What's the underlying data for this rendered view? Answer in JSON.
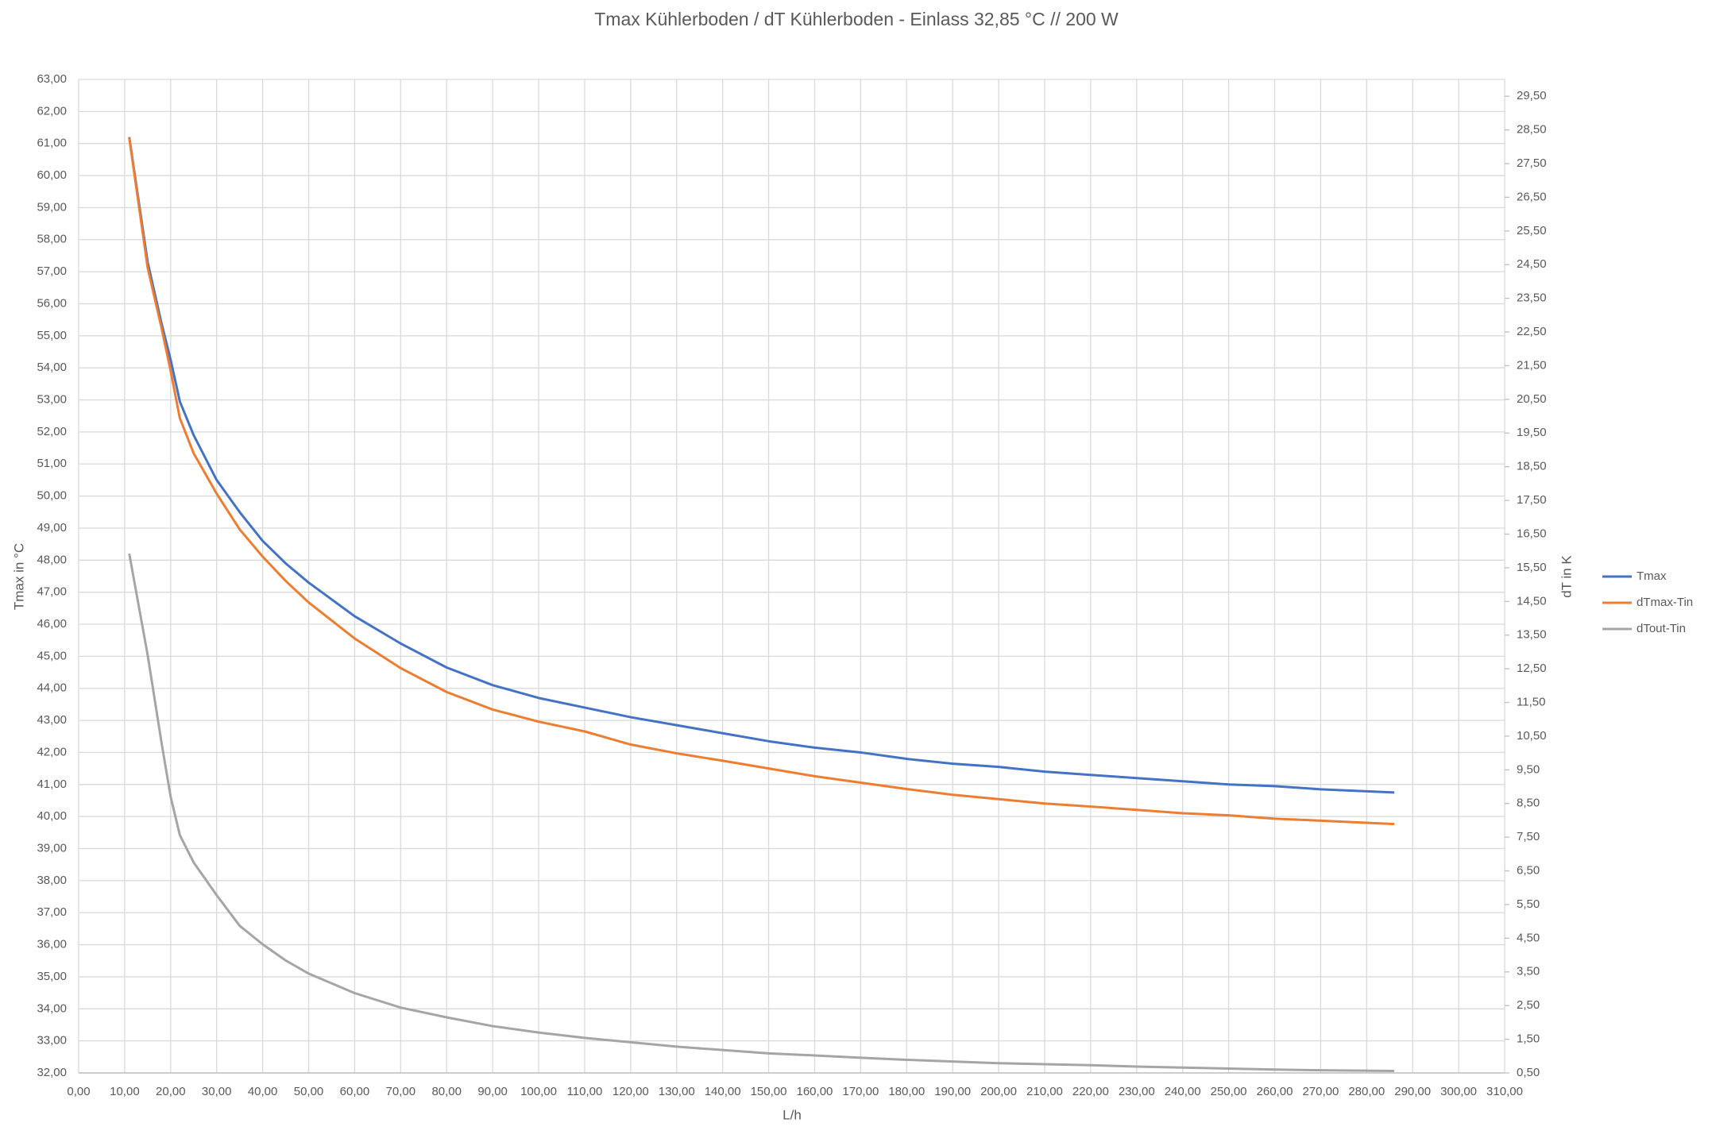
{
  "chart_data": {
    "type": "line",
    "title": "Tmax Kühlerboden / dT Kühlerboden - Einlass 32,85 °C // 200 W",
    "xlabel": "L/h",
    "ylabel": "Tmax in °C",
    "y2label": "dT in K",
    "x": [
      11,
      15,
      18,
      20,
      22,
      25,
      30,
      35,
      40,
      45,
      50,
      60,
      70,
      80,
      90,
      100,
      110,
      120,
      130,
      140,
      150,
      160,
      170,
      180,
      190,
      200,
      210,
      220,
      230,
      240,
      250,
      260,
      270,
      286
    ],
    "series": [
      {
        "name": "Tmax",
        "color": "#4472c4",
        "axis": "y",
        "values": [
          61.2,
          57.3,
          55.4,
          54.25,
          52.95,
          51.9,
          50.5,
          49.5,
          48.6,
          47.9,
          47.3,
          46.25,
          45.4,
          44.65,
          44.1,
          43.7,
          43.4,
          43.1,
          42.85,
          42.6,
          42.35,
          42.15,
          42.0,
          41.8,
          41.65,
          41.55,
          41.4,
          41.3,
          41.2,
          41.1,
          41.0,
          40.95,
          40.85,
          40.75
        ]
      },
      {
        "name": "dTmax-Tin",
        "color": "#ed7d31",
        "axis": "y2",
        "values": [
          28.27,
          24.41,
          22.63,
          21.34,
          19.94,
          18.9,
          17.7,
          16.64,
          15.83,
          15.11,
          14.47,
          13.4,
          12.52,
          11.81,
          11.29,
          10.93,
          10.64,
          10.25,
          9.99,
          9.77,
          9.54,
          9.31,
          9.12,
          8.93,
          8.76,
          8.63,
          8.5,
          8.41,
          8.31,
          8.21,
          8.15,
          8.05,
          7.99,
          7.89
        ]
      },
      {
        "name": "dTout-Tin",
        "color": "#a5a5a5",
        "axis": "y2",
        "values": [
          15.92,
          12.91,
          10.32,
          8.7,
          7.56,
          6.75,
          5.78,
          4.87,
          4.32,
          3.84,
          3.45,
          2.87,
          2.44,
          2.15,
          1.89,
          1.7,
          1.54,
          1.41,
          1.28,
          1.18,
          1.08,
          1.02,
          0.95,
          0.89,
          0.84,
          0.79,
          0.76,
          0.73,
          0.69,
          0.66,
          0.63,
          0.6,
          0.58,
          0.56
        ]
      }
    ],
    "xlim": [
      0,
      310
    ],
    "ylim": [
      32,
      63
    ],
    "y2lim": [
      0.5,
      30
    ],
    "xticks": [
      {
        "value": 0,
        "label": "0,00"
      },
      {
        "value": 10,
        "label": "10,00"
      },
      {
        "value": 20,
        "label": "20,00"
      },
      {
        "value": 30,
        "label": "30,00"
      },
      {
        "value": 40,
        "label": "40,00"
      },
      {
        "value": 50,
        "label": "50,00"
      },
      {
        "value": 60,
        "label": "60,00"
      },
      {
        "value": 70,
        "label": "70,00"
      },
      {
        "value": 80,
        "label": "80,00"
      },
      {
        "value": 90,
        "label": "90,00"
      },
      {
        "value": 100,
        "label": "100,00"
      },
      {
        "value": 110,
        "label": "110,00"
      },
      {
        "value": 120,
        "label": "120,00"
      },
      {
        "value": 130,
        "label": "130,00"
      },
      {
        "value": 140,
        "label": "140,00"
      },
      {
        "value": 150,
        "label": "150,00"
      },
      {
        "value": 160,
        "label": "160,00"
      },
      {
        "value": 170,
        "label": "170,00"
      },
      {
        "value": 180,
        "label": "180,00"
      },
      {
        "value": 190,
        "label": "190,00"
      },
      {
        "value": 200,
        "label": "200,00"
      },
      {
        "value": 210,
        "label": "210,00"
      },
      {
        "value": 220,
        "label": "220,00"
      },
      {
        "value": 230,
        "label": "230,00"
      },
      {
        "value": 240,
        "label": "240,00"
      },
      {
        "value": 250,
        "label": "250,00"
      },
      {
        "value": 260,
        "label": "260,00"
      },
      {
        "value": 270,
        "label": "270,00"
      },
      {
        "value": 280,
        "label": "280,00"
      },
      {
        "value": 290,
        "label": "290,00"
      },
      {
        "value": 300,
        "label": "300,00"
      },
      {
        "value": 310,
        "label": "310,00"
      }
    ],
    "yticks": [
      {
        "value": 32,
        "label": "32,00"
      },
      {
        "value": 33,
        "label": "33,00"
      },
      {
        "value": 34,
        "label": "34,00"
      },
      {
        "value": 35,
        "label": "35,00"
      },
      {
        "value": 36,
        "label": "36,00"
      },
      {
        "value": 37,
        "label": "37,00"
      },
      {
        "value": 38,
        "label": "38,00"
      },
      {
        "value": 39,
        "label": "39,00"
      },
      {
        "value": 40,
        "label": "40,00"
      },
      {
        "value": 41,
        "label": "41,00"
      },
      {
        "value": 42,
        "label": "42,00"
      },
      {
        "value": 43,
        "label": "43,00"
      },
      {
        "value": 44,
        "label": "44,00"
      },
      {
        "value": 45,
        "label": "45,00"
      },
      {
        "value": 46,
        "label": "46,00"
      },
      {
        "value": 47,
        "label": "47,00"
      },
      {
        "value": 48,
        "label": "48,00"
      },
      {
        "value": 49,
        "label": "49,00"
      },
      {
        "value": 50,
        "label": "50,00"
      },
      {
        "value": 51,
        "label": "51,00"
      },
      {
        "value": 52,
        "label": "52,00"
      },
      {
        "value": 53,
        "label": "53,00"
      },
      {
        "value": 54,
        "label": "54,00"
      },
      {
        "value": 55,
        "label": "55,00"
      },
      {
        "value": 56,
        "label": "56,00"
      },
      {
        "value": 57,
        "label": "57,00"
      },
      {
        "value": 58,
        "label": "58,00"
      },
      {
        "value": 59,
        "label": "59,00"
      },
      {
        "value": 60,
        "label": "60,00"
      },
      {
        "value": 61,
        "label": "61,00"
      },
      {
        "value": 62,
        "label": "62,00"
      },
      {
        "value": 63,
        "label": "63,00"
      }
    ],
    "y2ticks": [
      {
        "value": 0.5,
        "label": "0,50"
      },
      {
        "value": 1.5,
        "label": "1,50"
      },
      {
        "value": 2.5,
        "label": "2,50"
      },
      {
        "value": 3.5,
        "label": "3,50"
      },
      {
        "value": 4.5,
        "label": "4,50"
      },
      {
        "value": 5.5,
        "label": "5,50"
      },
      {
        "value": 6.5,
        "label": "6,50"
      },
      {
        "value": 7.5,
        "label": "7,50"
      },
      {
        "value": 8.5,
        "label": "8,50"
      },
      {
        "value": 9.5,
        "label": "9,50"
      },
      {
        "value": 10.5,
        "label": "10,50"
      },
      {
        "value": 11.5,
        "label": "11,50"
      },
      {
        "value": 12.5,
        "label": "12,50"
      },
      {
        "value": 13.5,
        "label": "13,50"
      },
      {
        "value": 14.5,
        "label": "14,50"
      },
      {
        "value": 15.5,
        "label": "15,50"
      },
      {
        "value": 16.5,
        "label": "16,50"
      },
      {
        "value": 17.5,
        "label": "17,50"
      },
      {
        "value": 18.5,
        "label": "18,50"
      },
      {
        "value": 19.5,
        "label": "19,50"
      },
      {
        "value": 20.5,
        "label": "20,50"
      },
      {
        "value": 21.5,
        "label": "21,50"
      },
      {
        "value": 22.5,
        "label": "22,50"
      },
      {
        "value": 23.5,
        "label": "23,50"
      },
      {
        "value": 24.5,
        "label": "24,50"
      },
      {
        "value": 25.5,
        "label": "25,50"
      },
      {
        "value": 26.5,
        "label": "26,50"
      },
      {
        "value": 27.5,
        "label": "27,50"
      },
      {
        "value": 28.5,
        "label": "28,50"
      },
      {
        "value": 29.5,
        "label": "29,50"
      }
    ],
    "grid": true,
    "legend": "right"
  }
}
